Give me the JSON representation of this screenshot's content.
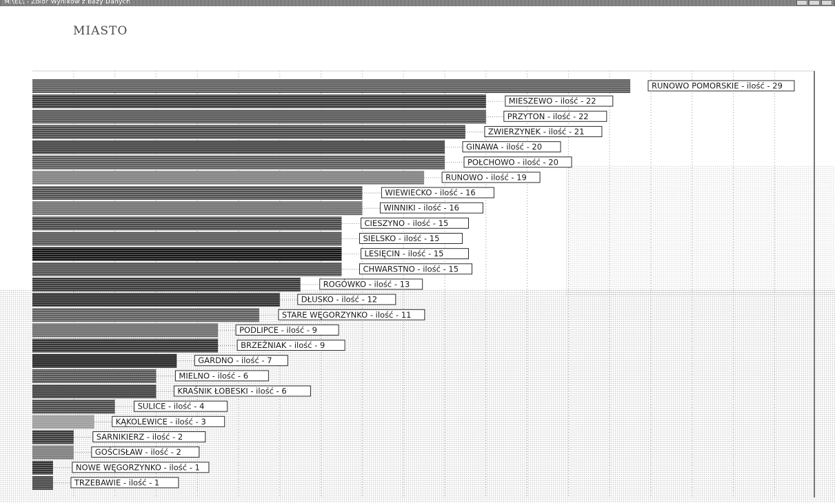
{
  "window": {
    "title": "M:\\EL\\ - Zbior Wynikow z Bazy Danych",
    "controls": [
      "minimize",
      "maximize",
      "close"
    ]
  },
  "heading": "MIASTO",
  "chart_data": {
    "type": "bar",
    "orientation": "horizontal",
    "title": "MIASTO",
    "xlim": [
      0,
      38
    ],
    "grid": true,
    "label_template": "{name} - ilość - {value}",
    "categories": [
      "RUNOWO POMORSKIE",
      "MIESZEWO",
      "PRZYTON",
      "ZWIERZYNEK",
      "GINAWA",
      "POŁCHOWO",
      "RUNOWO",
      "WIEWIECKO",
      "WINNIKI",
      "CIESZYNO",
      "SIELSKO",
      "LESIĘCIN",
      "CHWARSTNO",
      "ROGÓWKO",
      "DŁUSKO",
      "STARE WĘGORZYNKO",
      "PODLIPCE",
      "BRZEŹNIAK",
      "GARDNO",
      "MIELNO",
      "KRAŚNIK ŁOBESKI",
      "SULICE",
      "KĄKOLEWICE",
      "SARNIKIERZ",
      "GOŚCISŁAW",
      "NOWE WĘGORZYNKO",
      "TRZEBAWIE"
    ],
    "values": [
      29,
      22,
      22,
      21,
      20,
      20,
      19,
      16,
      16,
      15,
      15,
      15,
      15,
      13,
      12,
      11,
      9,
      9,
      7,
      6,
      6,
      4,
      3,
      2,
      2,
      1,
      1
    ],
    "labels": [
      "RUNOWO POMORSKIE - ilość - 29",
      "MIESZEWO - ilość - 22",
      "PRZYTON - ilość - 22",
      "ZWIERZYNEK - ilość - 21",
      "GINAWA - ilość - 20",
      "POŁCHOWO - ilość - 20",
      "RUNOWO - ilość - 19",
      "WIEWIECKO - ilość - 16",
      "WINNIKI - ilość - 16",
      "CIESZYNO - ilość - 15",
      "SIELSKO - ilość - 15",
      "LESIĘCIN - ilość - 15",
      "CHWARSTNO - ilość - 15",
      "ROGÓWKO - ilość - 13",
      "DŁUSKO - ilość - 12",
      "STARE WĘGORZYNKO - ilość - 11",
      "PODLIPCE - ilość - 9",
      "BRZEŹNIAK - ilość - 9",
      "GARDNO - ilość - 7",
      "MIELNO - ilość - 6",
      "KRAŚNIK ŁOBESKI - ilość - 6",
      "SULICE - ilość - 4",
      "KĄKOLEWICE - ilość - 3",
      "SARNIKIERZ - ilość - 2",
      "GOŚCISŁAW - ilość - 2",
      "NOWE WĘGORZYNKO - ilość - 1",
      "TRZEBAWIE - ilość - 1"
    ],
    "bar_colors": [
      "#5c5c5c",
      "#3a3a3a",
      "#555555",
      "#4a4a4a",
      "#404040",
      "#5a5a5a",
      "#7e7e7e",
      "#505050",
      "#6e6e6e",
      "#484848",
      "#555555",
      "#151515",
      "#505050",
      "#3a3a3a",
      "#2e2e2e",
      "#5e5e5e",
      "#6a6a6a",
      "#333333",
      "#222222",
      "#555555",
      "#3e3e3e",
      "#4a4a4a",
      "#9a9a9a",
      "#3a3a3a",
      "#7a7a7a",
      "#333333",
      "#444444"
    ]
  }
}
